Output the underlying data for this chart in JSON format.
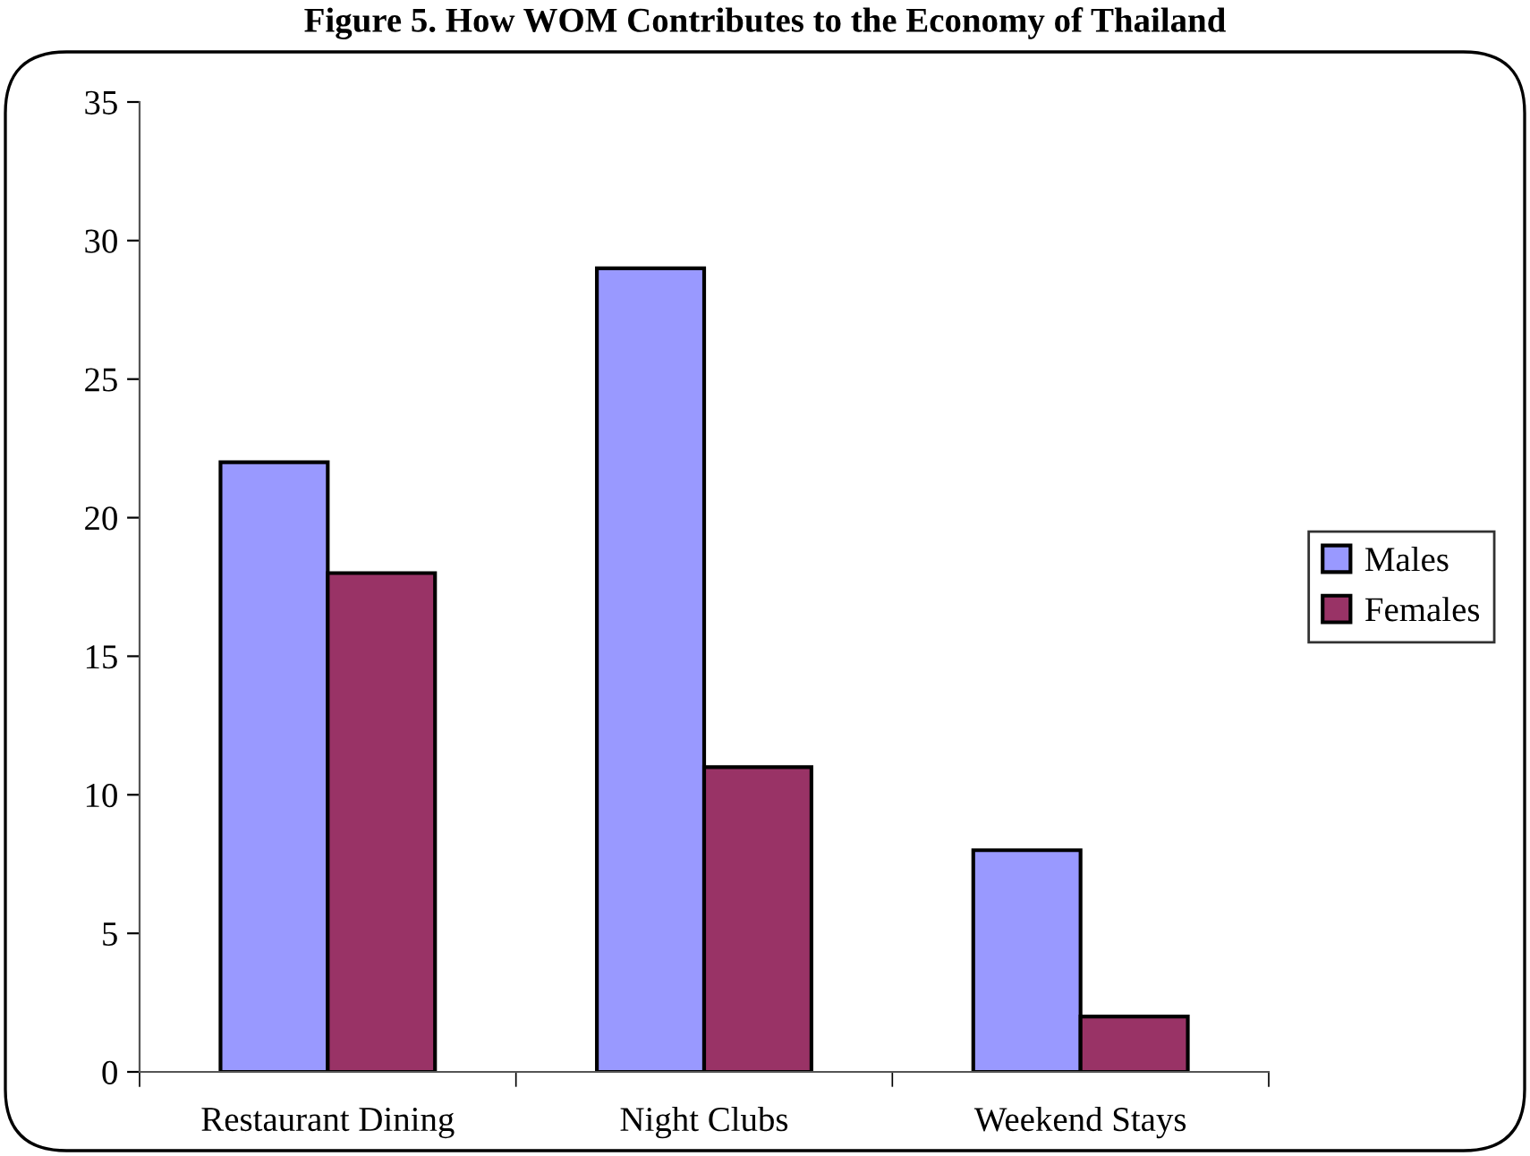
{
  "chart_data": {
    "type": "bar",
    "title": "Figure 5. How WOM Contributes to the Economy of Thailand",
    "categories": [
      "Restaurant Dining",
      "Night Clubs",
      "Weekend Stays"
    ],
    "series": [
      {
        "name": "Males",
        "color": "#9999ff",
        "values": [
          22,
          29,
          8
        ]
      },
      {
        "name": "Females",
        "color": "#993366",
        "values": [
          18,
          11,
          2
        ]
      }
    ],
    "ylim": [
      0,
      35
    ],
    "yticks": [
      0,
      5,
      10,
      15,
      20,
      25,
      30,
      35
    ],
    "grid": false,
    "legend": "right"
  }
}
